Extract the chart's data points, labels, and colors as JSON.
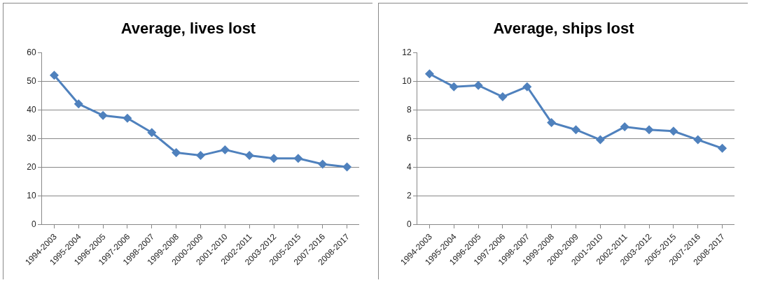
{
  "chart_data": [
    {
      "type": "line",
      "title": "Average, lives lost",
      "categories": [
        "1994-2003",
        "1995-2004",
        "1996-2005",
        "1997-2006",
        "1998-2007",
        "1999-2008",
        "2000-2009",
        "2001-2010",
        "2002-2011",
        "2003-2012",
        "2005-2015",
        "2007-2016",
        "2008-2017"
      ],
      "series": [
        {
          "color": "#4f81bd",
          "values": [
            52,
            42,
            38,
            37,
            32,
            25,
            24,
            26,
            24,
            23,
            23,
            21,
            20
          ]
        }
      ],
      "ylim": [
        0,
        60
      ],
      "yticks": [
        0,
        10,
        20,
        30,
        40,
        50,
        60
      ],
      "grid": "y",
      "marker": "diamond",
      "line_style": "solid"
    },
    {
      "type": "line",
      "title": "Average, ships lost",
      "categories": [
        "1994-2003",
        "1995-2004",
        "1996-2005",
        "1997-2006",
        "1998-2007",
        "1999-2008",
        "2000-2009",
        "2001-2010",
        "2002-2011",
        "2003-2012",
        "2005-2015",
        "2007-2016",
        "2008-2017"
      ],
      "series": [
        {
          "color": "#4f81bd",
          "values": [
            10.5,
            9.6,
            9.7,
            8.9,
            9.6,
            7.1,
            6.6,
            5.9,
            6.8,
            6.6,
            6.5,
            5.9,
            5.3
          ]
        }
      ],
      "ylim": [
        0,
        12
      ],
      "yticks": [
        0,
        2,
        4,
        6,
        8,
        10,
        12
      ],
      "grid": "y",
      "marker": "diamond",
      "line_style": "solid"
    }
  ]
}
